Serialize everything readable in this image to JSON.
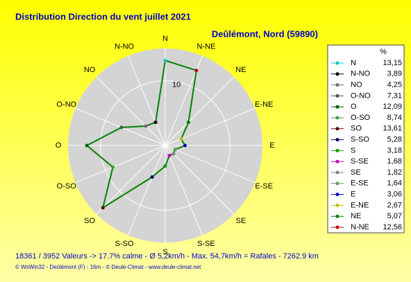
{
  "chart_data": {
    "type": "radar",
    "title": "Distribution Direction du vent   juillet 2021",
    "subtitle": "Deûlémont, Nord (59890)",
    "categories": [
      "N",
      "N-NO",
      "NO",
      "O-NO",
      "O",
      "O-SO",
      "SO",
      "S-SO",
      "S",
      "S-SE",
      "SE",
      "E-SE",
      "E",
      "E-NE",
      "NE",
      "N-NE"
    ],
    "values": [
      13.15,
      3.89,
      4.25,
      7.31,
      12.09,
      8.74,
      13.61,
      5.28,
      3.18,
      1.68,
      1.82,
      1.64,
      3.06,
      2.67,
      5.07,
      12.56
    ],
    "value_labels": [
      "13,15",
      "3,89",
      "4,25",
      "7,31",
      "12,09",
      "8,74",
      "13,61",
      "5,28",
      "3,18",
      "1,68",
      "1,82",
      "1,64",
      "3,06",
      "2,67",
      "5,07",
      "12,56"
    ],
    "colors": [
      "#00c8c8",
      "#000000",
      "#806080",
      "#406040",
      "#006000",
      "#40a040",
      "#600000",
      "#000060",
      "#00a000",
      "#c000c0",
      "#808080",
      "#60a060",
      "#0000c0",
      "#c0c000",
      "#008000",
      "#c00000"
    ],
    "color": "#008000",
    "legend_title": "%",
    "rlim": [
      0,
      15
    ],
    "rticks": [
      10
    ],
    "annotations": [
      "18361 / 3952 Valeurs  -> 17.7% calme   -   Ø 5,2km/h   -   Max. 54,7km/h = Rafales   -   7262.9 km",
      "© WsWin32  -  Deûlémont (F) - 16m  -  © Deule-Climat - www.deule-climat.net"
    ]
  }
}
